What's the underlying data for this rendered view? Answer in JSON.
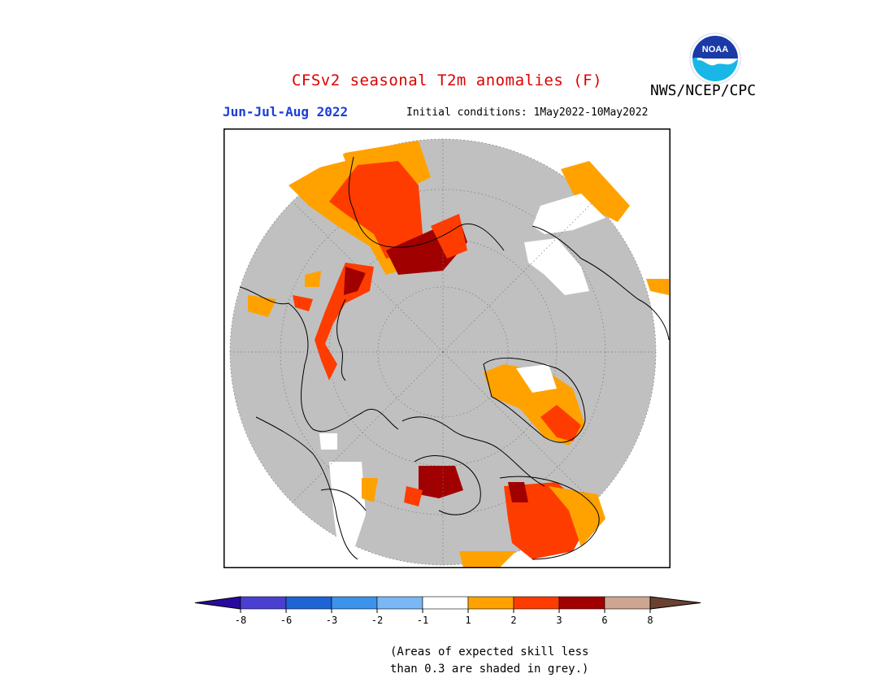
{
  "header": {
    "title": "CFSv2 seasonal T2m anomalies (F)",
    "agency": "NWS/NCEP/CPC",
    "period": "Jun-Jul-Aug 2022",
    "initial_conditions": "Initial conditions: 1May2022-10May2022",
    "logo_text": "NOAA"
  },
  "colors": {
    "title": "#dd0000",
    "period": "#1a3ed6",
    "land_grey": "#c0c0c0",
    "coast": "#000000",
    "anom_pos1": "#ffa200",
    "anom_pos2": "#ff3c00",
    "anom_pos3": "#a00000",
    "neutral": "#ffffff"
  },
  "legend": {
    "bins": [
      {
        "color": "#2a0a9e"
      },
      {
        "color": "#4a3fd0"
      },
      {
        "color": "#1d64d4"
      },
      {
        "color": "#3b93ec"
      },
      {
        "color": "#7ab8f5"
      },
      {
        "color": "#ffffff"
      },
      {
        "color": "#ffa200"
      },
      {
        "color": "#ff3c00"
      },
      {
        "color": "#a00000"
      },
      {
        "color": "#cda590"
      },
      {
        "color": "#6b4132"
      }
    ],
    "ticks": [
      "-8",
      "-6",
      "-3",
      "-2",
      "-1",
      "1",
      "2",
      "3",
      "6",
      "8"
    ]
  },
  "note": {
    "line1": "(Areas of expected skill less",
    "line2": "than 0.3 are shaded in grey.)"
  }
}
